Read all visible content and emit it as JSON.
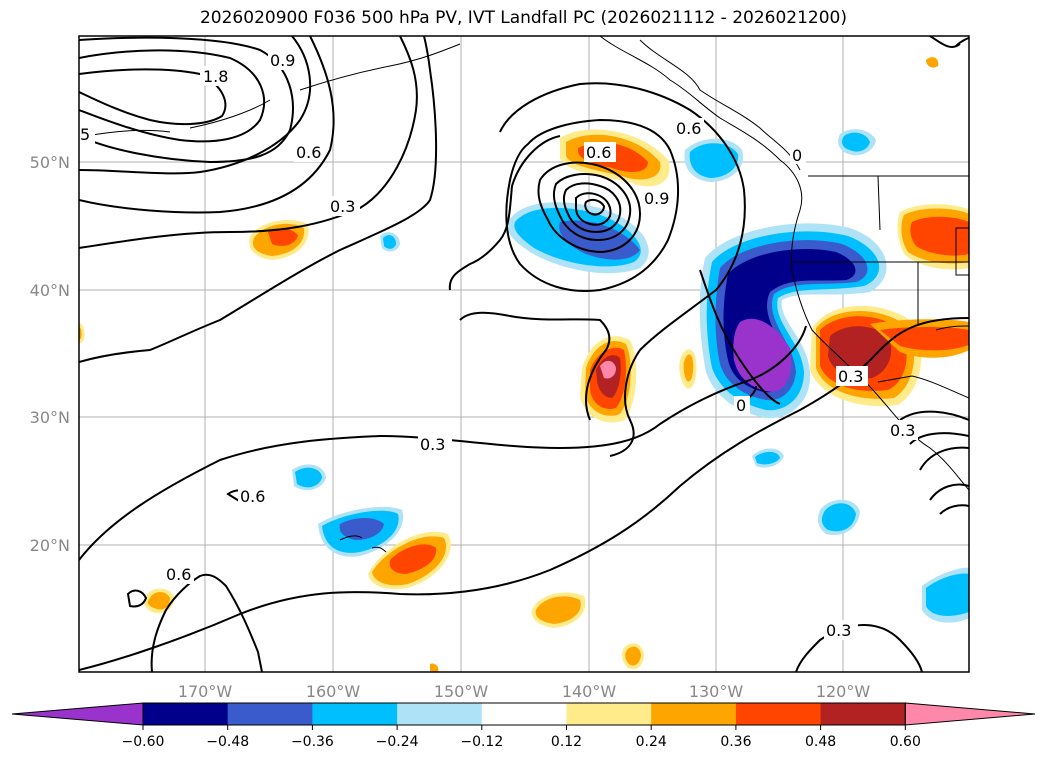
{
  "title": "2026020900 F036 500 hPa PV, IVT Landfall PC (2026021112 - 2026021200)",
  "map": {
    "lon_labels": [
      "170°W",
      "160°W",
      "150°W",
      "140°W",
      "130°W",
      "120°W"
    ],
    "lat_labels": [
      "50°N",
      "40°N",
      "30°N",
      "20°N"
    ],
    "contour_labels": [
      "1.8",
      "0.9",
      "5",
      "0.6",
      "0.3",
      "0.6",
      "0.6",
      "0.9",
      "0.3",
      "0.6",
      "0.6",
      "0",
      "0",
      "0.3",
      "0.3",
      "0.3"
    ]
  },
  "colorbar": {
    "ticks": [
      "−0.60",
      "−0.48",
      "−0.36",
      "−0.24",
      "−0.12",
      "0.12",
      "0.24",
      "0.36",
      "0.48",
      "0.60"
    ],
    "colors": [
      "#9933cc",
      "#00008b",
      "#3a5bcc",
      "#00bfff",
      "#aee2f7",
      "#ffffff",
      "#ffeb8a",
      "#ffa500",
      "#ff4500",
      "#b22222",
      "#ff88aa"
    ]
  }
}
